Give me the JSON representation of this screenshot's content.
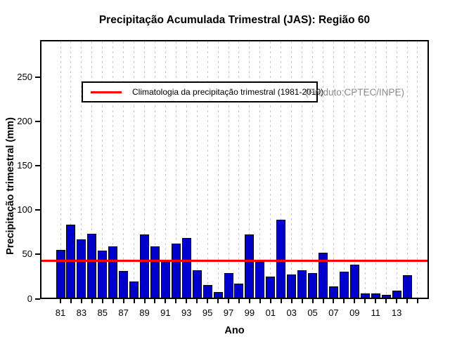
{
  "title": "Precipitação Acumulada Trimestral (JAS): Região 60",
  "product_label": "(Produto:CPTEC/INPE)",
  "legend": {
    "climatology_label": "Climatologia da precipitação trimestral (1981-2010)"
  },
  "axes": {
    "x_label": "Ano",
    "y_label": "Precipitação trimestral (mm)"
  },
  "chart_data": {
    "type": "bar",
    "title": "Precipitação Acumulada Trimestral (JAS): Região 60",
    "xlabel": "Ano",
    "ylabel": "Precipitação trimestral (mm)",
    "categories": [
      1981,
      1982,
      1983,
      1984,
      1985,
      1986,
      1987,
      1988,
      1989,
      1990,
      1991,
      1992,
      1993,
      1994,
      1995,
      1996,
      1997,
      1998,
      1999,
      2000,
      2001,
      2002,
      2003,
      2004,
      2005,
      2006,
      2007,
      2008,
      2009,
      2010,
      2011,
      2012,
      2013,
      2014
    ],
    "values": [
      54,
      82,
      66,
      72,
      53,
      58,
      30,
      18,
      71,
      58,
      43,
      61,
      67,
      31,
      14,
      6,
      28,
      16,
      71,
      40,
      24,
      88,
      26,
      31,
      28,
      51,
      13,
      29,
      37,
      5,
      5,
      3,
      8,
      25
    ],
    "climatology": {
      "value": 43,
      "period": "1981-2010",
      "label": "Climatologia da precipitação trimestral (1981-2010)"
    },
    "ylim": [
      0,
      291
    ],
    "y_ticks": [
      0,
      50,
      100,
      150,
      200,
      250
    ],
    "x_tick_labels": [
      "81",
      "83",
      "85",
      "87",
      "89",
      "91",
      "93",
      "95",
      "97",
      "99",
      "01",
      "03",
      "05",
      "07",
      "09",
      "11",
      "13"
    ],
    "grid_years": [
      1981,
      1982,
      1983,
      1984,
      1985,
      1986,
      1987,
      1988,
      1989,
      1990,
      1991,
      1992,
      1993,
      1994,
      1995,
      1996,
      1997,
      1998,
      1999,
      2000,
      2001,
      2002,
      2003,
      2004,
      2005,
      2006,
      2007,
      2008,
      2009,
      2010,
      2011,
      2012,
      2013,
      2014,
      2015
    ],
    "grid": "vertical-dotted",
    "legend_position": "top-left"
  },
  "colors": {
    "bar": "#0000cd",
    "bar_border": "#000000",
    "climatology_line": "#ff0000",
    "grid": "#c8c8c8",
    "product_text": "#8c8c8c",
    "background": "#ffffff"
  }
}
